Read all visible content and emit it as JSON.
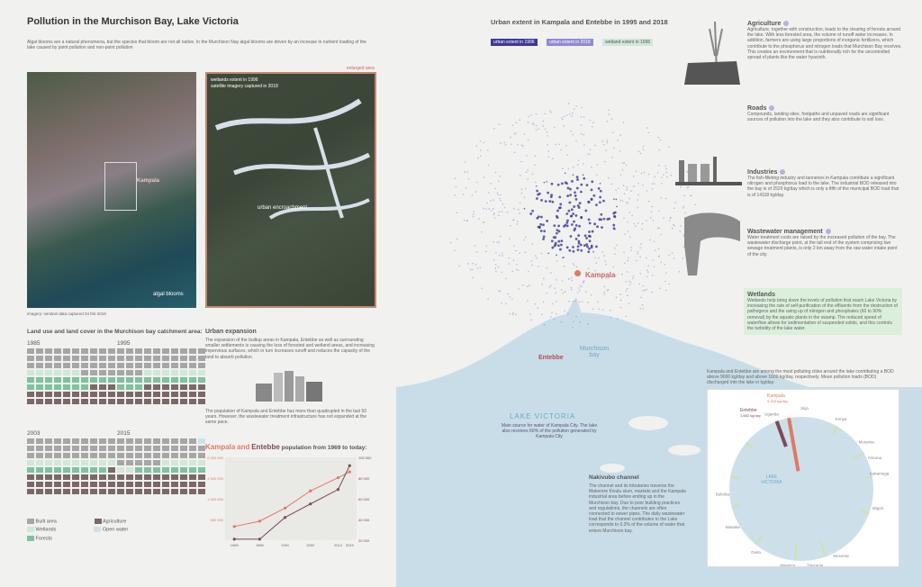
{
  "title": "Pollution in the Murchison Bay, Lake Victoria",
  "intro": "Algal blooms are a natural phenomena, but the species that bloom are not all native. In the Murchison Nay algal blooms are driven by an increase in nutrient loading of the lake caused by point pollution and non-point pollution",
  "satellite": {
    "kampala_label": "Kampala",
    "algal_label": "algal blooms",
    "credit": "imagery: sentinel data captured 04 feb 2018",
    "enlarged_area": "enlarged area",
    "wetlands_note_1": "wetlands extent in 1996",
    "wetlands_note_2": "satellite imagery captured in 2018",
    "encroach_label": "urban encroachment"
  },
  "urban_extent": {
    "title": "Urban extent in Kampala and Entebbe in 1995 and 2018",
    "legend": [
      "urban extent in 1996",
      "urban extent in 2018",
      "wetland extent in 1996"
    ],
    "legend_colors": [
      "#3b3a98",
      "#8e8ad6",
      "#cfe8d8"
    ]
  },
  "map_labels": {
    "kampala": "Kampala",
    "entebbe": "Entebbe",
    "murchison": "Murchison bay",
    "lake": "LAKE VICTORIA",
    "lake_note": "Main source for water of Kampala City. The lake also receives 60% of the pollution generated by Kampala City"
  },
  "land_use": {
    "title": "Land use and land cover in the Murchison bay catchment area:",
    "years": [
      "1985",
      "1995",
      "2003",
      "2015"
    ],
    "legend": [
      "Built area",
      "Agriculture",
      "Wetlands",
      "Open water",
      "Forests"
    ]
  },
  "urban_expansion": {
    "title": "Urban expansion",
    "text": "The expansion of the builtup areas in Kampala, Entebbe as well as surrounding smaller settlements is causing the loss of forested and wetland areas, and increasing impervious surfaces, which in turn increases runoff and reduces the capacity of the land to absorb pollution.",
    "text2": "The population of Kampala and Entebbe has more than quadrupled in the last 50 years. However, the wastewater treatment infrastructure has not expanded at the same pace."
  },
  "population": {
    "title_a": "Kampala",
    "title_b": "and",
    "title_c": "Entebbe",
    "title_d": "population from 1969 to today:",
    "left_ticks": [
      "2 000 000",
      "1 500 000",
      "1 000 000",
      "500 000"
    ],
    "right_ticks": [
      "100 000",
      "80 000",
      "60 000",
      "40 000",
      "20 000"
    ],
    "x_labels": [
      "1969",
      "1980",
      "1991",
      "2002",
      "2014",
      "2019"
    ]
  },
  "chart_data": {
    "type": "line",
    "x": [
      1969,
      1980,
      1991,
      2002,
      2014,
      2019
    ],
    "series": [
      {
        "name": "Kampala",
        "values": [
          330000,
          460000,
          775000,
          1190000,
          1510000,
          1650000
        ],
        "color": "#e07a5f"
      },
      {
        "name": "Entebbe",
        "values": [
          21000,
          21000,
          42000,
          55000,
          69000,
          92000
        ],
        "color": "#7d4a5a"
      }
    ],
    "ylim_left": [
      0,
      2000000
    ],
    "ylim_right": [
      20000,
      100000
    ]
  },
  "sidebar": [
    {
      "title": "Agriculture",
      "text": "Agriculture, together with construction, leads to the clearing of forests around the lake. With less forested area, the volume of runoff water increases. In addition, farmers are using large proportions of inorganic fertilizers, which contribute to the phosphorus and nitrogen loads that Murchison Bay receives. This creates an environment that is nutritionally rich for the uncontrolled spread of plants like the water hyacinth."
    },
    {
      "title": "Roads",
      "text": "Compounds, landing sites, footpaths and unpaved roads are significant sources of pollution into the lake and they also contribute to soil loss."
    },
    {
      "title": "Industries",
      "text": "The fish-filleting industry and tanneries in Kampala contribute a significant nitrogen and phosphorus load to the lake. The industrial BOD released into the bay is of 2520 kg/day which is only a fifth of the municipal BOD load that is of 14118 kg/day."
    },
    {
      "title": "Wastewater management",
      "text": "Water treatment costs are raised by the increased pollution of the bay. The wastewater discharge point, at the tail end of the system comprising two sewage treatment plants, is only 2 km away from the raw water intake point of the city."
    },
    {
      "title": "Wetlands",
      "text": "Wetlands help bring down the levels of pollution that reach Lake Victoria by increasing the rate of self-purification of the effluents from the destruction of pathogens and the using up of nitrogen and phosphates (60 to 90% removal) by the aquatic plants in the swamp. The reduced speed of waterflow allows for sedimentation of suspended solids, and this controls the turbidity of the lake water."
    }
  ],
  "bod": {
    "text": "Kampala and Entebbe are among the most polluting cities around the lake contributing a BOD above 9000 kg/day and above 1600 kg/day, respectively. Mean pollution loads (BOD) discharged into the lake in kg/day:",
    "kampala": "Kampala",
    "kampala_val": "9,163 kg/day",
    "entebbe": "Entebbe",
    "entebbe_val": "1,682 kg/day",
    "lake": "LAKE VICTORIA",
    "cities": [
      "Uganda",
      "Jinja",
      "Kenya",
      "Musoma",
      "Kisumu",
      "Kakamega",
      "Migori",
      "Musoma",
      "Tanzania",
      "Mwanza",
      "Geita",
      "Bukoba",
      "Masaka"
    ]
  },
  "nakivubo": {
    "title": "Nakivubo channel",
    "text": "The channel and its tributaries traverse the Makerere Kivulu slum, markets and the Kampala industrial area before ending up in the Murchison bay. Due to poor building practices and regulations, the channels are often connected to sewer pipes. The daily wastewater load that the channel contributes to the Lake corresponds to 0.2% of the volume of water that enters Murchison bay."
  }
}
